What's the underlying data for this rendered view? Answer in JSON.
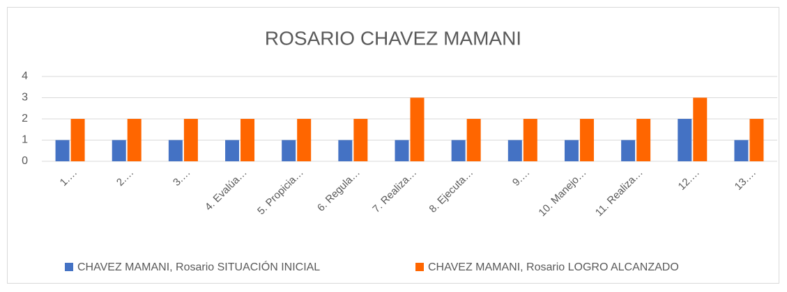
{
  "chart_data": {
    "type": "bar",
    "title": "ROSARIO CHAVEZ MAMANI",
    "categories": [
      "1.…",
      "2.…",
      "3.…",
      "4.  Evalúa…",
      "5.  Propicia…",
      "6.  Regula…",
      "7.  Realiza…",
      "8.  Ejecuta…",
      "9.…",
      "10. Manejo…",
      "11. Realiza…",
      "12.…",
      "13.…"
    ],
    "series": [
      {
        "name": "CHAVEZ MAMANI, Rosario SITUACIÓN INICIAL",
        "color": "#4472c4",
        "values": [
          1,
          1,
          1,
          1,
          1,
          1,
          1,
          1,
          1,
          1,
          1,
          2,
          1
        ]
      },
      {
        "name": "CHAVEZ MAMANI, Rosario LOGRO ALCANZADO",
        "color": "#ff6600",
        "values": [
          2,
          2,
          2,
          2,
          2,
          2,
          3,
          2,
          2,
          2,
          2,
          3,
          2
        ]
      }
    ],
    "ylim": [
      0,
      4
    ],
    "yticks": [
      0,
      1,
      2,
      3,
      4
    ],
    "grid": true,
    "legend": "bottom"
  }
}
